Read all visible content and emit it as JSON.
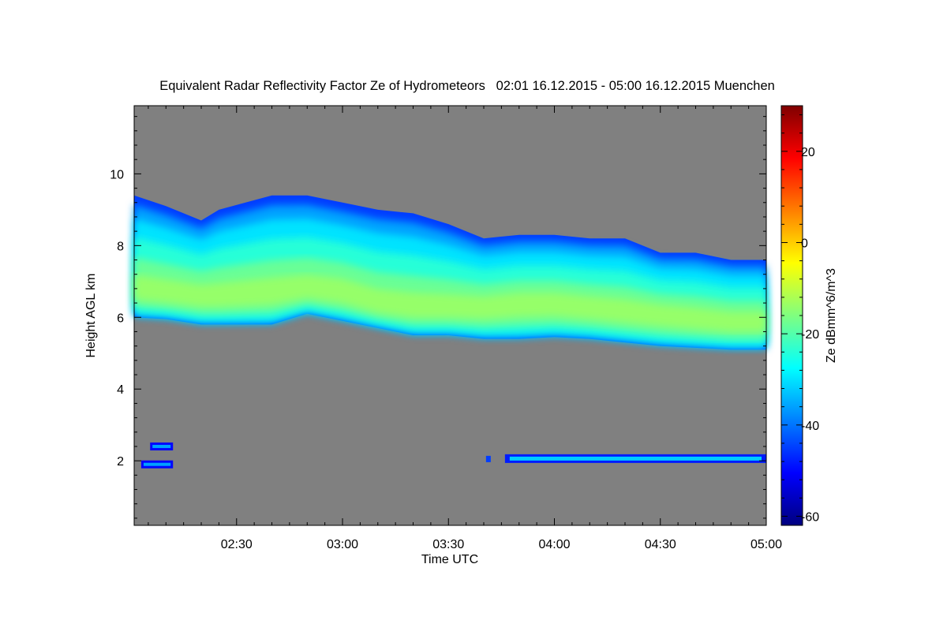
{
  "chart_data": {
    "type": "heatmap",
    "title": "Equivalent Radar Reflectivity Factor Ze of Hydrometeors   02:01 16.12.2015 - 05:00 16.12.2015 Muenchen",
    "xlabel": "Time UTC",
    "ylabel": "Height AGL km",
    "colorbar_label": "Ze dBmm^6/m^3",
    "xlim": [
      "02:01",
      "05:00"
    ],
    "ylim": [
      0.2,
      11.9
    ],
    "x_ticks": [
      "02:30",
      "03:00",
      "03:30",
      "04:00",
      "04:30",
      "05:00"
    ],
    "y_ticks": [
      "2",
      "4",
      "6",
      "8",
      "10"
    ],
    "colorbar_range": [
      -62,
      30
    ],
    "colorbar_ticks": [
      "20",
      "0",
      "-20",
      "-40",
      "-60"
    ],
    "colorscale": "jet",
    "background_color": "#808080",
    "grid": false,
    "layers": [
      {
        "name": "upper cloud layer",
        "time": [
          "02:01",
          "02:10",
          "02:20",
          "02:25",
          "02:40",
          "02:50",
          "03:00",
          "03:10",
          "03:20",
          "03:30",
          "03:40",
          "03:50",
          "04:00",
          "04:10",
          "04:20",
          "04:30",
          "04:40",
          "04:50",
          "05:00"
        ],
        "top_km": [
          9.4,
          9.1,
          8.7,
          9.0,
          9.4,
          9.4,
          9.2,
          9.0,
          8.9,
          8.6,
          8.2,
          8.3,
          8.3,
          8.2,
          8.2,
          7.8,
          7.8,
          7.6,
          7.6
        ],
        "base_km": [
          6.0,
          5.95,
          5.8,
          5.8,
          5.8,
          6.1,
          5.9,
          5.7,
          5.5,
          5.5,
          5.4,
          5.4,
          5.45,
          5.4,
          5.3,
          5.2,
          5.15,
          5.1,
          5.1
        ],
        "core_km": [
          6.8,
          6.7,
          6.6,
          6.6,
          6.7,
          6.8,
          6.7,
          6.4,
          6.3,
          6.3,
          6.3,
          6.4,
          6.4,
          6.3,
          6.2,
          6.1,
          6.0,
          5.9,
          5.9
        ],
        "peak_ze_dbz": -14
      },
      {
        "name": "low layer",
        "time": [
          "03:46",
          "05:00"
        ],
        "height_km": 2.05,
        "peak_ze_dbz": -32
      },
      {
        "name": "low echoes",
        "time": [
          "02:03",
          "02:12"
        ],
        "height_km": [
          1.9,
          2.4
        ],
        "peak_ze_dbz": -36
      }
    ]
  }
}
